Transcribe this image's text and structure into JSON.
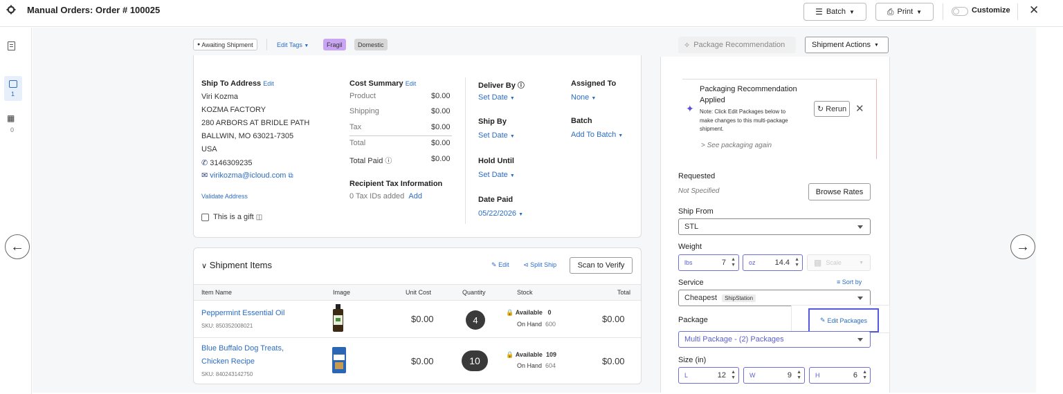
{
  "header": {
    "title": "Manual Orders: Order # 100025",
    "batch_label": "Batch",
    "print_label": "Print",
    "customize_label": "Customize"
  },
  "rail": {
    "orders_count": "1",
    "batch_count": "0"
  },
  "tags_bar": {
    "status": "Awaiting Shipment",
    "edit_tags": "Edit Tags",
    "tags": [
      {
        "label": "Fragil",
        "color": "#c9a5f3"
      },
      {
        "label": "Domestic",
        "color": "#d8d8d8"
      }
    ]
  },
  "ship_to": {
    "heading": "Ship To Address",
    "edit": "Edit",
    "name": "Viri Kozma",
    "company": "KOZMA FACTORY",
    "street": "280 ARBORS AT BRIDLE PATH",
    "city": "BALLWIN, MO 63021-7305",
    "country": "USA",
    "phone": "3146309235",
    "email": "virikozma@icloud.com",
    "validate": "Validate Address",
    "gift": "This is a gift"
  },
  "cost_summary": {
    "heading": "Cost Summary",
    "edit": "Edit",
    "rows": [
      {
        "label": "Product",
        "value": "$0.00"
      },
      {
        "label": "Shipping",
        "value": "$0.00"
      },
      {
        "label": "Tax",
        "value": "$0.00"
      },
      {
        "label": "Total",
        "value": "$0.00"
      }
    ],
    "total_paid_label": "Total Paid",
    "total_paid_value": "$0.00",
    "tax_heading": "Recipient Tax Information",
    "tax_ids": "0 Tax IDs added",
    "tax_add": "Add"
  },
  "dates": {
    "deliver_by_label": "Deliver By",
    "deliver_by_value": "Set Date",
    "ship_by_label": "Ship By",
    "ship_by_value": "Set Date",
    "hold_until_label": "Hold Until",
    "hold_until_value": "Set Date",
    "date_paid_label": "Date Paid",
    "date_paid_value": "05/22/2026"
  },
  "assign": {
    "assigned_label": "Assigned To",
    "assigned_value": "None",
    "batch_label": "Batch",
    "batch_value": "Add To Batch"
  },
  "items": {
    "heading": "Shipment Items",
    "edit": "Edit",
    "split": "Split Ship",
    "scan": "Scan to Verify",
    "columns": [
      "Item Name",
      "Image",
      "Unit Cost",
      "Quantity",
      "Stock",
      "Total"
    ],
    "available_label": "Available",
    "on_hand_label": "On Hand",
    "rows": [
      {
        "name": "Peppermint Essential Oil",
        "name2": "",
        "sku": "SKU: 850352008021",
        "unit_cost": "$0.00",
        "quantity": "4",
        "available": "0",
        "on_hand": "600",
        "total": "$0.00"
      },
      {
        "name": "Blue Buffalo Dog Treats,",
        "name2": "Chicken Recipe",
        "sku": "SKU: 840243142750",
        "unit_cost": "$0.00",
        "quantity": "10",
        "available": "109",
        "on_hand": "604",
        "total": "$0.00"
      }
    ]
  },
  "right_panel": {
    "package_rec_btn": "Package Recommendation",
    "shipment_actions": "Shipment Actions",
    "rec_title_1": "Packaging Recommendation",
    "rec_title_2": "Applied",
    "rec_note_1": "Note: Click Edit Packages below to",
    "rec_note_2": "make changes to this multi-package",
    "rec_note_3": "shipment.",
    "rec_again": "See packaging again",
    "rerun": "Rerun",
    "requested_label": "Requested",
    "requested_value": "Not Specified",
    "browse_rates": "Browse Rates",
    "ship_from_label": "Ship From",
    "ship_from_value": "STL",
    "weight_label": "Weight",
    "lbs_label": "lbs",
    "lbs_value": "7",
    "oz_label": "oz",
    "oz_value": "14.4",
    "scale": "Scale",
    "service_label": "Service",
    "sort_by": "Sort by",
    "service_value": "Cheapest",
    "service_badge": "ShipStation",
    "package_label": "Package",
    "edit_packages": "Edit Packages",
    "package_value": "Multi Package - (2) Packages",
    "size_label": "Size (in)",
    "l_label": "L",
    "l_value": "12",
    "w_label": "W",
    "w_value": "9",
    "h_label": "H",
    "h_value": "6"
  }
}
